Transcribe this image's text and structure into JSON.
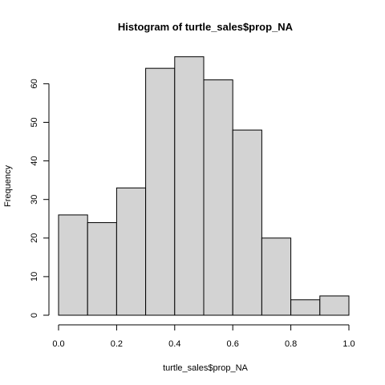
{
  "chart_data": {
    "type": "bar",
    "title": "Histogram of turtle_sales$prop_NA",
    "xlabel": "turtle_sales$prop_NA",
    "ylabel": "Frequency",
    "bins": [
      {
        "start": 0.0,
        "end": 0.1,
        "count": 26
      },
      {
        "start": 0.1,
        "end": 0.2,
        "count": 24
      },
      {
        "start": 0.2,
        "end": 0.3,
        "count": 33
      },
      {
        "start": 0.3,
        "end": 0.4,
        "count": 64
      },
      {
        "start": 0.4,
        "end": 0.5,
        "count": 67
      },
      {
        "start": 0.5,
        "end": 0.6,
        "count": 61
      },
      {
        "start": 0.6,
        "end": 0.7,
        "count": 48
      },
      {
        "start": 0.7,
        "end": 0.8,
        "count": 20
      },
      {
        "start": 0.8,
        "end": 0.9,
        "count": 4
      },
      {
        "start": 0.9,
        "end": 1.0,
        "count": 5
      }
    ],
    "xlim": [
      0,
      1
    ],
    "ylim": [
      0,
      70
    ],
    "xticks": [
      "0.0",
      "0.2",
      "0.4",
      "0.6",
      "0.8",
      "1.0"
    ],
    "yticks": [
      "0",
      "10",
      "20",
      "30",
      "40",
      "50",
      "60"
    ],
    "grid": false,
    "legend": "none"
  }
}
